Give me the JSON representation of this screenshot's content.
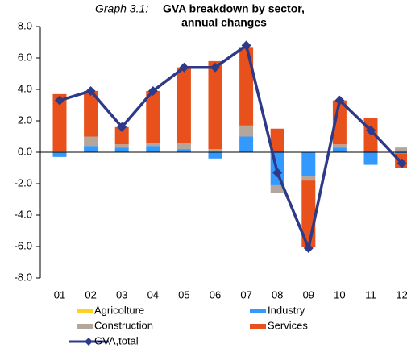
{
  "chart_data": {
    "type": "bar",
    "title_prefix": "Graph 3.1:",
    "title": [
      "GVA breakdown by sector,",
      "annual changes"
    ],
    "categories": [
      "01",
      "02",
      "03",
      "04",
      "05",
      "06",
      "07",
      "08",
      "09",
      "10",
      "11",
      "12"
    ],
    "series": [
      {
        "name": "Agricolture",
        "color": "#ffd21f",
        "values": [
          0,
          0,
          0,
          0,
          0,
          0,
          0,
          0,
          0,
          0,
          0,
          0
        ]
      },
      {
        "name": "Industry",
        "color": "#3399ff",
        "values": [
          -0.3,
          0.4,
          0.3,
          0.4,
          0.2,
          -0.4,
          1.0,
          -2.1,
          -1.5,
          0.3,
          -0.8,
          -0.1
        ]
      },
      {
        "name": "Construction",
        "color": "#b5a69c",
        "values": [
          0.1,
          0.6,
          0.2,
          0.2,
          0.4,
          0.2,
          0.7,
          -0.5,
          -0.3,
          0.2,
          0,
          0.3
        ]
      },
      {
        "name": "Services",
        "color": "#e8501c",
        "values": [
          3.6,
          2.9,
          1.1,
          3.3,
          4.8,
          5.6,
          5.0,
          1.5,
          -4.2,
          2.8,
          2.2,
          -0.9
        ]
      },
      {
        "name": "GVA,total",
        "color": "#2e3a87",
        "type": "line",
        "values": [
          3.3,
          3.9,
          1.6,
          3.9,
          5.4,
          5.4,
          6.8,
          -1.3,
          -6.1,
          3.3,
          1.4,
          -0.7
        ]
      }
    ],
    "ylim": [
      -8,
      8
    ],
    "yticks": [
      {
        "value": -8,
        "label": "-8.0"
      },
      {
        "value": -6,
        "label": "-6.0"
      },
      {
        "value": -4,
        "label": "-4.0"
      },
      {
        "value": -2,
        "label": "-2.0"
      },
      {
        "value": 0,
        "label": "0.0"
      },
      {
        "value": 2,
        "label": "2.0"
      },
      {
        "value": 4,
        "label": "4.0"
      },
      {
        "value": 6,
        "label": "6.0"
      },
      {
        "value": 8,
        "label": "8.0"
      }
    ]
  }
}
